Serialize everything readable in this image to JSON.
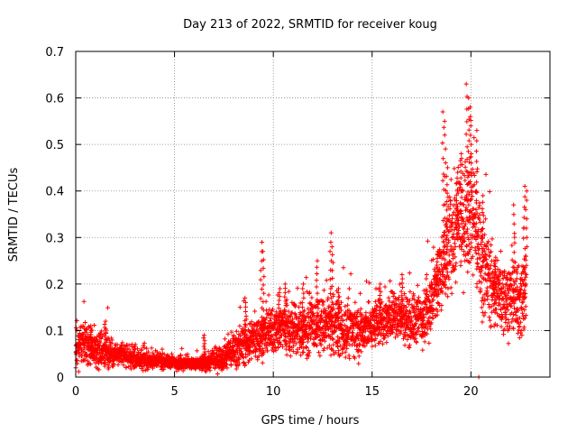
{
  "chart_data": {
    "type": "scatter",
    "title": "Day 213 of 2022, SRMTID for receiver koug",
    "xlabel": "GPS time / hours",
    "ylabel": "SRMTID / TECUs",
    "xlim": [
      0,
      24
    ],
    "ylim": [
      0,
      0.7
    ],
    "grid": true,
    "marker": "+",
    "x_ticks": [
      0,
      5,
      10,
      15,
      20
    ],
    "x_tick_labels": [
      "0",
      "5",
      "10",
      "15",
      "20"
    ],
    "y_ticks": [
      0,
      0.1,
      0.2,
      0.3,
      0.4,
      0.5,
      0.6,
      0.7
    ],
    "y_tick_labels": [
      "0",
      "0.1",
      "0.2",
      "0.3",
      "0.4",
      "0.5",
      "0.6",
      "0.7"
    ],
    "series": [
      {
        "name": "SRMTID",
        "color": "#ff0000",
        "envelope": [
          [
            0.0,
            0.06,
            0.03
          ],
          [
            0.5,
            0.07,
            0.03
          ],
          [
            1.0,
            0.06,
            0.025
          ],
          [
            1.5,
            0.055,
            0.025
          ],
          [
            2.0,
            0.05,
            0.02
          ],
          [
            2.5,
            0.045,
            0.015
          ],
          [
            3.0,
            0.04,
            0.015
          ],
          [
            3.5,
            0.035,
            0.012
          ],
          [
            4.0,
            0.035,
            0.012
          ],
          [
            4.5,
            0.033,
            0.01
          ],
          [
            5.0,
            0.032,
            0.01
          ],
          [
            5.5,
            0.03,
            0.01
          ],
          [
            6.0,
            0.028,
            0.01
          ],
          [
            6.5,
            0.03,
            0.012
          ],
          [
            7.0,
            0.035,
            0.015
          ],
          [
            7.5,
            0.045,
            0.02
          ],
          [
            8.0,
            0.06,
            0.025
          ],
          [
            8.5,
            0.07,
            0.03
          ],
          [
            9.0,
            0.08,
            0.03
          ],
          [
            9.5,
            0.09,
            0.03
          ],
          [
            10.0,
            0.1,
            0.035
          ],
          [
            10.5,
            0.11,
            0.04
          ],
          [
            11.0,
            0.1,
            0.04
          ],
          [
            11.5,
            0.1,
            0.04
          ],
          [
            12.0,
            0.11,
            0.04
          ],
          [
            12.5,
            0.11,
            0.04
          ],
          [
            13.0,
            0.11,
            0.04
          ],
          [
            13.5,
            0.1,
            0.04
          ],
          [
            14.0,
            0.1,
            0.04
          ],
          [
            14.5,
            0.1,
            0.04
          ],
          [
            15.0,
            0.11,
            0.035
          ],
          [
            15.5,
            0.12,
            0.035
          ],
          [
            16.0,
            0.13,
            0.035
          ],
          [
            16.5,
            0.13,
            0.035
          ],
          [
            17.0,
            0.12,
            0.04
          ],
          [
            17.5,
            0.13,
            0.04
          ],
          [
            18.0,
            0.16,
            0.05
          ],
          [
            18.5,
            0.22,
            0.07
          ],
          [
            19.0,
            0.3,
            0.08
          ],
          [
            19.5,
            0.33,
            0.08
          ],
          [
            20.0,
            0.38,
            0.1
          ],
          [
            20.5,
            0.26,
            0.08
          ],
          [
            21.0,
            0.2,
            0.06
          ],
          [
            21.5,
            0.17,
            0.05
          ],
          [
            22.0,
            0.17,
            0.05
          ],
          [
            22.5,
            0.16,
            0.06
          ],
          [
            22.8,
            0.2,
            0.08
          ]
        ],
        "spikes": [
          [
            8.6,
            0.17
          ],
          [
            9.4,
            0.29
          ],
          [
            9.5,
            0.27
          ],
          [
            10.3,
            0.19
          ],
          [
            10.6,
            0.2
          ],
          [
            11.5,
            0.2
          ],
          [
            12.2,
            0.25
          ],
          [
            12.9,
            0.31
          ],
          [
            13.0,
            0.28
          ],
          [
            13.3,
            0.19
          ],
          [
            15.4,
            0.2
          ],
          [
            16.5,
            0.22
          ],
          [
            18.3,
            0.27
          ],
          [
            18.6,
            0.57
          ],
          [
            18.7,
            0.55
          ],
          [
            18.8,
            0.45
          ],
          [
            19.3,
            0.44
          ],
          [
            19.5,
            0.47
          ],
          [
            19.8,
            0.63
          ],
          [
            19.9,
            0.6
          ],
          [
            20.0,
            0.58
          ],
          [
            20.3,
            0.53
          ],
          [
            20.6,
            0.39
          ],
          [
            21.2,
            0.25
          ],
          [
            22.2,
            0.37
          ],
          [
            22.7,
            0.41
          ],
          [
            22.8,
            0.4
          ],
          [
            6.5,
            0.09
          ],
          [
            1.5,
            0.12
          ],
          [
            0.8,
            0.11
          ]
        ],
        "outliers": [
          [
            20.4,
            0.0
          ]
        ]
      }
    ]
  }
}
